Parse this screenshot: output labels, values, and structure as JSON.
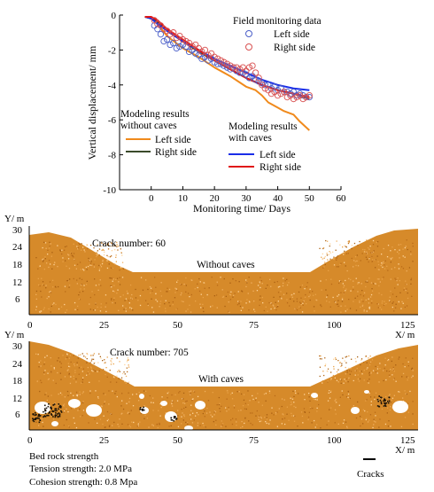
{
  "chart_data": {
    "type": "line",
    "xlabel": "Monitoring time/ Days",
    "ylabel": "Vertical displacement/ mm",
    "xlim": [
      -10,
      60
    ],
    "ylim": [
      -10,
      0
    ],
    "xticks": [
      0,
      10,
      20,
      30,
      40,
      50,
      60
    ],
    "yticks": [
      0,
      -2,
      -4,
      -6,
      -8,
      -10
    ],
    "legends": {
      "field_title": "Field monitoring data",
      "field_left": "Left side",
      "field_right": "Right side",
      "nocave_title_1": "Modeling results",
      "nocave_title_2": "without caves",
      "nocave_left": "Left side",
      "nocave_right": "Right side",
      "cave_title_1": "Modeling results",
      "cave_title_2": "with caves",
      "cave_left": "Left side",
      "cave_right": "Right side"
    },
    "colors": {
      "field_left": "#4a5ec8",
      "field_right": "#d85050",
      "nocave_left": "#f08a1c",
      "nocave_right": "#3a4a2a",
      "cave_left": "#1a2ee8",
      "cave_right": "#e01818"
    },
    "series": [
      {
        "name": "Left side",
        "group": "field",
        "marker": "circle",
        "x": [
          1,
          2,
          3,
          4,
          5,
          6,
          7,
          8,
          9,
          10,
          11,
          12,
          13,
          14,
          15,
          16,
          17,
          18,
          19,
          20,
          21,
          22,
          23,
          24,
          25,
          26,
          27,
          28,
          29,
          30,
          31,
          32,
          33,
          34,
          35,
          36,
          37,
          38,
          39,
          40,
          41,
          42,
          43,
          44,
          45,
          46,
          47,
          48,
          49,
          50
        ],
        "y": [
          -0.6,
          -0.8,
          -1.1,
          -1.5,
          -1.4,
          -1.7,
          -1.6,
          -1.9,
          -1.8,
          -1.7,
          -1.8,
          -2.1,
          -2.0,
          -2.2,
          -2.3,
          -2.5,
          -2.4,
          -2.6,
          -2.5,
          -2.7,
          -2.8,
          -2.8,
          -2.9,
          -3.0,
          -3.1,
          -3.0,
          -3.2,
          -3.3,
          -3.3,
          -3.4,
          -3.6,
          -3.5,
          -3.7,
          -3.8,
          -3.9,
          -4.0,
          -4.0,
          -4.2,
          -4.1,
          -4.3,
          -4.2,
          -4.4,
          -4.4,
          -4.5,
          -4.4,
          -4.6,
          -4.5,
          -4.6,
          -4.7,
          -4.7
        ]
      },
      {
        "name": "Right side",
        "group": "field",
        "marker": "circle",
        "x": [
          1,
          2,
          3,
          4,
          5,
          6,
          7,
          8,
          9,
          10,
          11,
          12,
          13,
          14,
          15,
          16,
          17,
          18,
          19,
          20,
          21,
          22,
          23,
          24,
          25,
          26,
          27,
          28,
          29,
          30,
          31,
          32,
          33,
          34,
          35,
          36,
          37,
          38,
          39,
          40,
          41,
          42,
          43,
          44,
          45,
          46,
          47,
          48,
          49,
          50
        ],
        "y": [
          -0.3,
          -0.5,
          -0.6,
          -0.8,
          -0.9,
          -1.1,
          -1.0,
          -1.3,
          -1.2,
          -1.4,
          -1.5,
          -1.6,
          -1.8,
          -1.7,
          -1.9,
          -2.1,
          -2.0,
          -2.3,
          -2.2,
          -2.4,
          -2.5,
          -2.6,
          -2.7,
          -2.8,
          -2.9,
          -3.0,
          -3.0,
          -3.1,
          -3.0,
          -3.2,
          -3.0,
          -2.9,
          -3.3,
          -3.6,
          -4.0,
          -4.2,
          -4.3,
          -4.5,
          -4.4,
          -4.6,
          -4.5,
          -4.4,
          -4.7,
          -4.6,
          -4.8,
          -4.7,
          -4.6,
          -4.8,
          -4.7,
          -4.6
        ]
      },
      {
        "name": "Left side",
        "group": "without caves",
        "x": [
          -2,
          0,
          2,
          5,
          10,
          15,
          20,
          25,
          30,
          33,
          35,
          37,
          40,
          42,
          45,
          47,
          50
        ],
        "y": [
          -0.1,
          -0.2,
          -0.5,
          -1.2,
          -1.9,
          -2.4,
          -3.0,
          -3.5,
          -4.1,
          -4.3,
          -4.6,
          -5.0,
          -5.3,
          -5.5,
          -5.7,
          -6.1,
          -6.6
        ]
      },
      {
        "name": "Right side",
        "group": "without caves",
        "x": [
          -2,
          0,
          2,
          5,
          10,
          15,
          20,
          25,
          30,
          35,
          40,
          45,
          50
        ],
        "y": [
          -0.1,
          -0.2,
          -0.4,
          -0.9,
          -1.5,
          -2.1,
          -2.6,
          -3.1,
          -3.6,
          -4.0,
          -4.3,
          -4.5,
          -4.8
        ]
      },
      {
        "name": "Left side",
        "group": "with caves",
        "x": [
          -2,
          0,
          2,
          5,
          10,
          15,
          20,
          25,
          30,
          35,
          40,
          45,
          50
        ],
        "y": [
          -0.1,
          -0.2,
          -0.5,
          -0.9,
          -1.5,
          -2.0,
          -2.5,
          -2.9,
          -3.3,
          -3.7,
          -4.0,
          -4.2,
          -4.3
        ]
      },
      {
        "name": "Right side",
        "group": "with caves",
        "x": [
          -2,
          0,
          2,
          5,
          10,
          15,
          20,
          25,
          30,
          35,
          40,
          45,
          50
        ],
        "y": [
          -0.1,
          -0.1,
          -0.3,
          -0.8,
          -1.4,
          -2.0,
          -2.6,
          -3.1,
          -3.6,
          -4.0,
          -4.3,
          -4.5,
          -4.7
        ]
      }
    ]
  },
  "panel_top": {
    "y_axis": "Y/ m",
    "x_axis": "X/ m",
    "crack_label": "Crack number: 60",
    "caption": "Without caves",
    "yticks": [
      "30",
      "24",
      "18",
      "12",
      "6"
    ],
    "xticks": [
      "0",
      "25",
      "50",
      "75",
      "100",
      "125"
    ]
  },
  "panel_bottom": {
    "y_axis": "Y/ m",
    "x_axis": "X/ m",
    "crack_label": "Crack number: 705",
    "caption": "With caves",
    "yticks": [
      "30",
      "24",
      "18",
      "12",
      "6"
    ],
    "xticks": [
      "0",
      "25",
      "50",
      "75",
      "100",
      "125"
    ]
  },
  "notes": {
    "line1": "Bed rock strength",
    "line2": "Tension strength: 2.0 MPa",
    "line3": "Cohesion strength: 0.8 Mpa",
    "cracks_label": "Cracks"
  }
}
